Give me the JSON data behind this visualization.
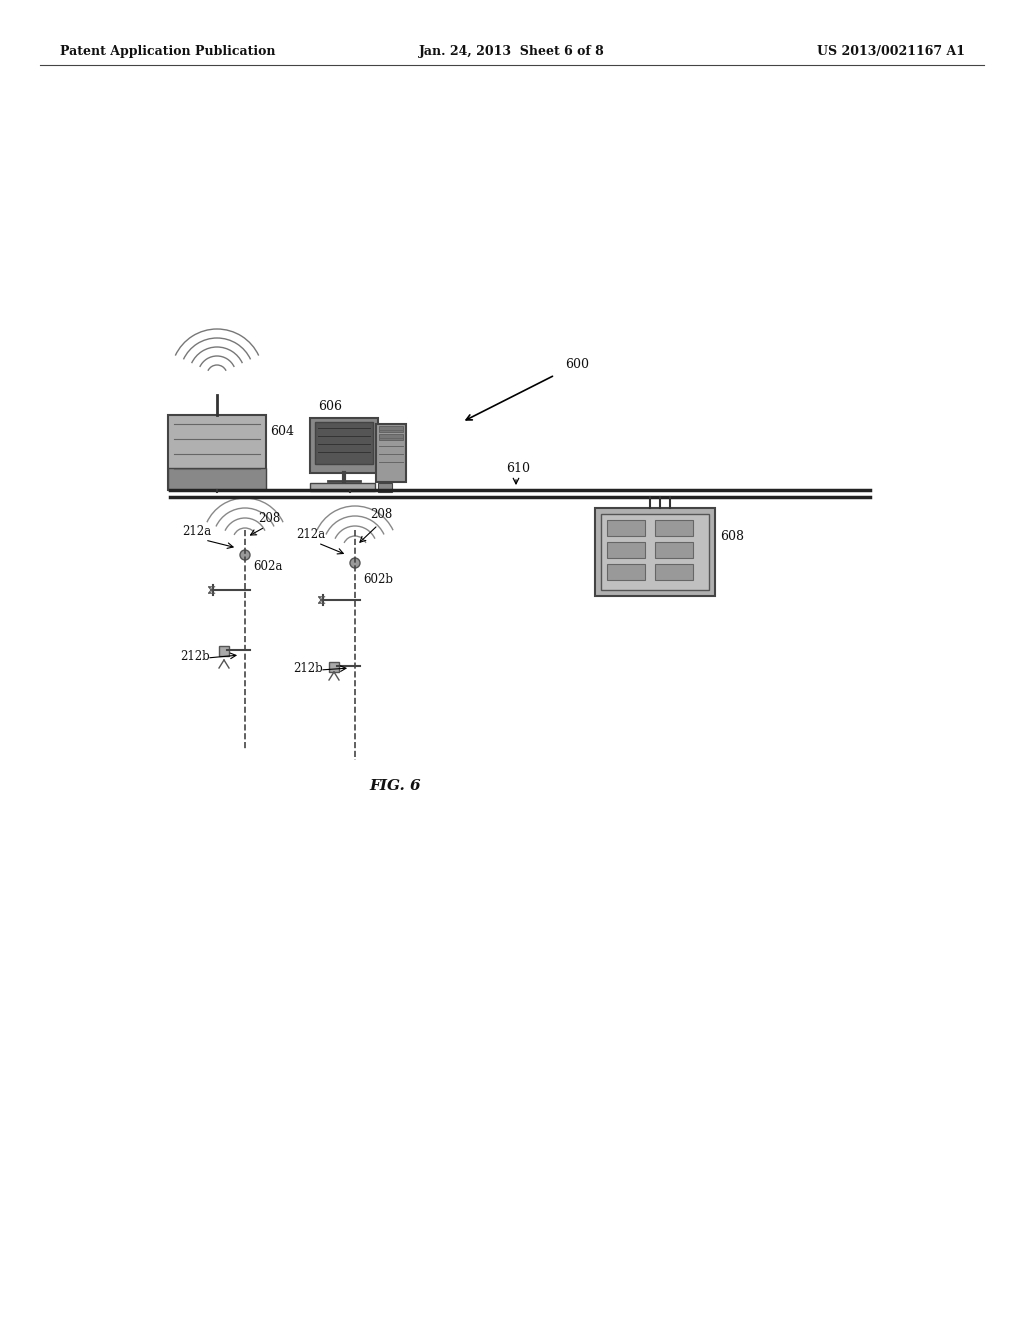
{
  "bg_color": "#ffffff",
  "header_left": "Patent Application Publication",
  "header_center": "Jan. 24, 2013  Sheet 6 of 8",
  "header_right": "US 2013/0021167 A1",
  "figure_label": "FIG. 6",
  "ref_600": "600",
  "ref_604": "604",
  "ref_606": "606",
  "ref_610": "610",
  "ref_608": "608",
  "ref_208a": "208",
  "ref_212a_left": "212a",
  "ref_602a": "602a",
  "ref_212b_left": "212b",
  "ref_208b": "208",
  "ref_212a_right": "212a",
  "ref_602b": "602b",
  "ref_212b_right": "212b",
  "text_color": "#111111",
  "line_color": "#333333",
  "gray_med": "#aaaaaa",
  "gray_dark": "#777777"
}
